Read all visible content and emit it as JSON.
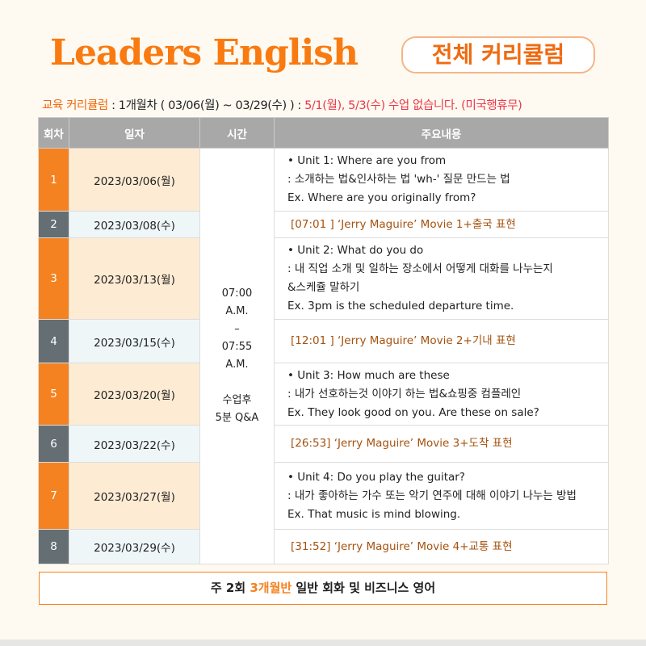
{
  "header": {
    "title": "Leaders English",
    "badge": "전체 커리큘럼"
  },
  "subtitle": {
    "label": "교육 커리큘럼",
    "period": " : 1개월차 ( 03/06(월) ~ 03/29(수) ) : ",
    "notice": "5/1(월), 5/3(수) 수업 없습니다. (미국행휴무)"
  },
  "table": {
    "columns": [
      "회차",
      "일자",
      "시간",
      "주요내용"
    ],
    "time": [
      "07:00",
      "A.M.",
      "–",
      "07:55",
      "A.M.",
      "",
      "수업후",
      "5분 Q&A"
    ],
    "rows": [
      {
        "no": "1",
        "date": "2023/03/06(월)",
        "lines": [
          "• Unit 1: Where are you from",
          ": 소개하는 법&인사하는 법 'wh-' 질문 만드는 법",
          "Ex. Where are you originally from?"
        ]
      },
      {
        "no": "2",
        "date": "2023/03/08(수)",
        "movie": "[07:01 ]  ‘Jerry Maguire’ Movie 1+출국 표현"
      },
      {
        "no": "3",
        "date": "2023/03/13(월)",
        "lines": [
          "• Unit 2: What do you do",
          ": 내 직업 소개 및 일하는 장소에서 어떻게 대화를 나누는지",
          "&스케쥴 말하기",
          "Ex. 3pm is the scheduled departure time."
        ]
      },
      {
        "no": "4",
        "date": "2023/03/15(수)",
        "movie": "[12:01 ]  ‘Jerry Maguire’ Movie 2+기내 표현"
      },
      {
        "no": "5",
        "date": "2023/03/20(월)",
        "lines": [
          "• Unit 3: How much are these",
          ": 내가 선호하는것 이야기 하는 법&쇼핑중 컴플레인",
          "Ex. They look good on you. Are these on sale?"
        ]
      },
      {
        "no": "6",
        "date": "2023/03/22(수)",
        "movie": "[26:53]  ‘Jerry Maguire’ Movie 3+도착 표현"
      },
      {
        "no": "7",
        "date": "2023/03/27(월)",
        "lines": [
          "• Unit 4: Do you play the guitar?",
          ": 내가 좋아하는 가수 또는 악기 연주에 대해 이야기 나누는 방법",
          "Ex. That music is mind blowing."
        ]
      },
      {
        "no": "8",
        "date": "2023/03/29(수)",
        "movie": "[31:52]  ‘Jerry Maguire’ Movie 4+교통 표현"
      }
    ]
  },
  "footer": {
    "a": "주 2회 ",
    "b": "3개월반",
    "c": " 일반 회화 및 비즈니스 영어"
  },
  "colors": {
    "accent": "#f58220",
    "dark": "#646e73",
    "movie": "#a5520e",
    "notice": "#e8384a"
  }
}
